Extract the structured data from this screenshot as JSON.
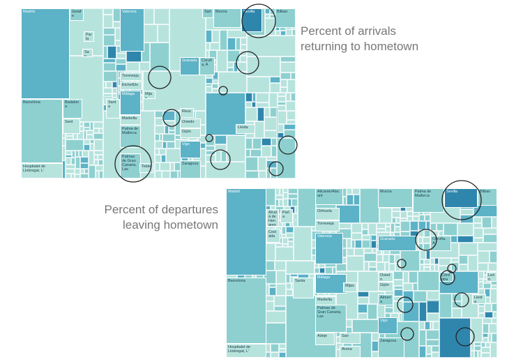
{
  "maps": [
    {
      "caption_lines": [
        "Percent of arrivals",
        "returning to hometown"
      ],
      "cells": [
        "Madrid",
        "Getafe",
        "Parla",
        "San",
        "Valencia",
        "Sari",
        "Murcia",
        "Sevilla",
        "Bilbao",
        "Torrevieja",
        "Elche/Elx",
        "Granada",
        "Coruña, A",
        "Málaga",
        "Mijas",
        "Marbella",
        "Reus",
        "Oviedo",
        "Gijón",
        "Lleida",
        "Palma de Mallorca",
        "Vigo",
        "Zaragoza",
        "Barcelona",
        "Badalona",
        "Santa",
        "Sant",
        "Palmas de Gran Canaria, Las",
        "Telde",
        "Hospitalet de Llobregat, L'"
      ]
    },
    {
      "caption_lines": [
        "Percent of departures",
        "leaving hometown"
      ],
      "cells": [
        "Madrid",
        "Alcalá de Henares",
        "Parla",
        "Coslada",
        "Alicante/Alacant",
        "Orihuela",
        "Torrevieja",
        "Valencia",
        "Murcia",
        "Palma de Mallorca",
        "Sevilla",
        "Bilbao",
        "Granada",
        "Coruña, A",
        "Córdoba",
        "Oviedo",
        "Gijón",
        "Almería",
        "León",
        "Lleida",
        "Málaga",
        "Mijas",
        "Marbella",
        "Barcelona",
        "Santa",
        "Palmas de Gran Canaria, Las",
        "Vigo",
        "Zaragoza",
        "Adeje",
        "Sari",
        "Arona",
        "Hospitalet de Llobregat, L'"
      ]
    }
  ]
}
